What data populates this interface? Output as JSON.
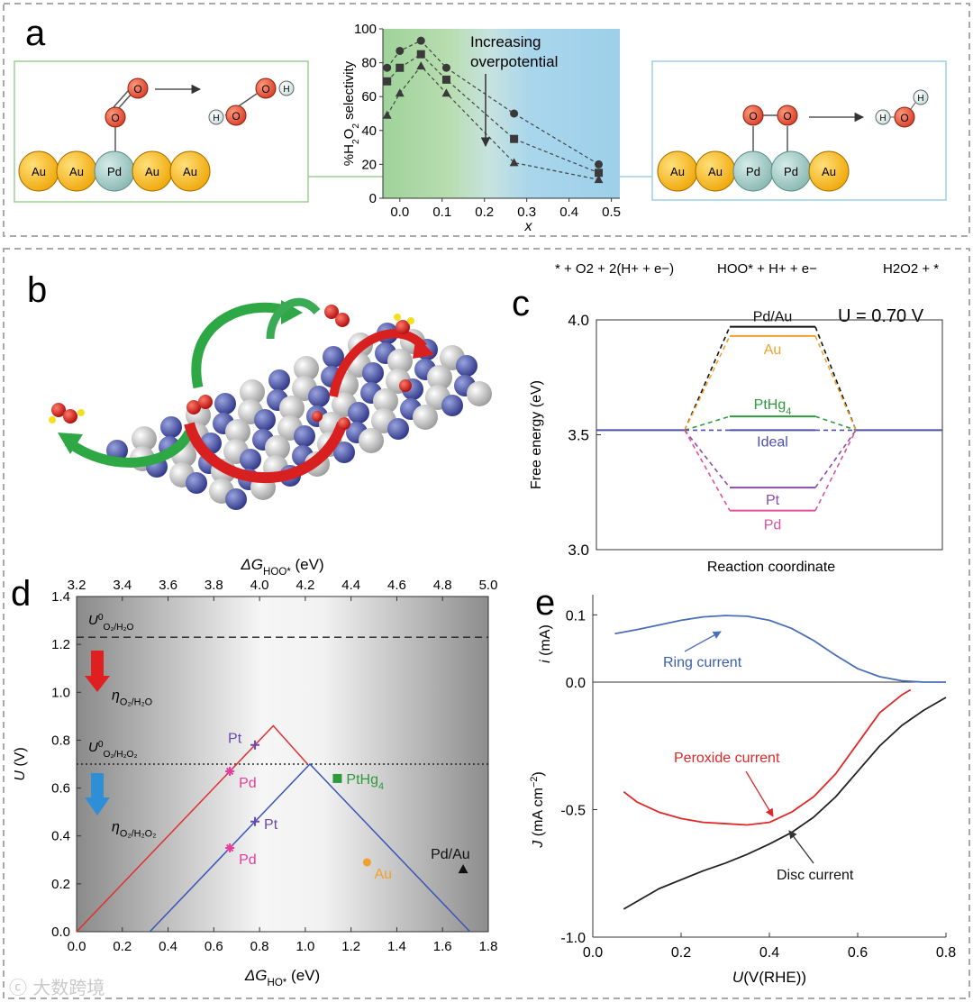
{
  "figure": {
    "panel_labels": [
      "a",
      "b",
      "c",
      "d",
      "e"
    ],
    "watermark": "大数跨境"
  },
  "panel_a": {
    "annotation": [
      "Increasing",
      "overpotential"
    ],
    "left_model": {
      "atoms": [
        "Au",
        "Au",
        "Pd",
        "Au",
        "Au"
      ],
      "adsorbate": [
        "O",
        "O"
      ],
      "product": [
        "H",
        "O",
        "O",
        "H"
      ]
    },
    "right_model": {
      "atoms": [
        "Au",
        "Au",
        "Pd",
        "Pd",
        "Au"
      ],
      "adsorbate": [
        "O",
        "O"
      ],
      "product": [
        "H",
        "O",
        "H"
      ]
    },
    "chart_data": {
      "type": "scatter",
      "title": "",
      "xlabel": "x",
      "ylabel": "%H2O2 selectivity",
      "xlim": [
        -0.04,
        0.52
      ],
      "ylim": [
        0,
        100
      ],
      "xticks": [
        "0.0",
        "0.1",
        "0.2",
        "0.3",
        "0.4",
        "0.5"
      ],
      "yticks": [
        "0",
        "20",
        "40",
        "60",
        "80",
        "100"
      ],
      "series": [
        {
          "name": "circles",
          "marker": "circle",
          "x": [
            -0.03,
            0.0,
            0.05,
            0.11,
            0.27,
            0.47
          ],
          "y": [
            77,
            87,
            93,
            77,
            50,
            20
          ]
        },
        {
          "name": "squares",
          "marker": "square",
          "x": [
            -0.03,
            0.0,
            0.05,
            0.11,
            0.27,
            0.47
          ],
          "y": [
            69,
            77,
            85,
            70,
            35,
            15
          ]
        },
        {
          "name": "triangles",
          "marker": "triangle",
          "x": [
            -0.03,
            0.0,
            0.05,
            0.11,
            0.27,
            0.47
          ],
          "y": [
            49,
            62,
            78,
            62,
            21,
            11
          ]
        }
      ]
    }
  },
  "panel_c": {
    "annotation": "U = 0.70 V",
    "header": [
      "* + O2 + 2(H+ + e−)",
      "HOO* + H+ + e−",
      "H2O2 + *"
    ],
    "chart_data": {
      "type": "line",
      "title": "",
      "xlabel": "Reaction coordinate",
      "ylabel": "Free energy (eV)",
      "ylim": [
        3.0,
        4.0
      ],
      "yticks": [
        "3.0",
        "3.5",
        "4.0"
      ],
      "baseline": 3.52,
      "series": [
        {
          "name": "Pd/Au",
          "level": 3.97,
          "color": "#111111"
        },
        {
          "name": "Au",
          "level": 3.93,
          "color": "#f0a030"
        },
        {
          "name": "PtHg4",
          "level": 3.58,
          "color": "#2e9a3e"
        },
        {
          "name": "Ideal",
          "level": 3.52,
          "color": "#4a4fb0"
        },
        {
          "name": "Pt",
          "level": 3.27,
          "color": "#8a4ca8"
        },
        {
          "name": "Pd",
          "level": 3.17,
          "color": "#e0529a"
        }
      ]
    }
  },
  "panel_d": {
    "chart_data": {
      "type": "scatter",
      "title": "",
      "xlabel": "ΔG_HO* (eV)",
      "x2label": "ΔG_HOO* (eV)",
      "ylabel": "U (V)",
      "xlim": [
        0,
        1.8
      ],
      "x2lim": [
        3.2,
        5.0
      ],
      "ylim": [
        0,
        1.4
      ],
      "xticks": [
        "0.0",
        "0.2",
        "0.4",
        "0.6",
        "0.8",
        "1.0",
        "1.2",
        "1.4",
        "1.6",
        "1.8"
      ],
      "x2ticks": [
        "3.2",
        "3.4",
        "3.6",
        "3.8",
        "4.0",
        "4.2",
        "4.4",
        "4.6",
        "4.8",
        "5.0"
      ],
      "yticks": [
        "0.0",
        "0.2",
        "0.4",
        "0.6",
        "0.8",
        "1.0",
        "1.2",
        "1.4"
      ],
      "reference_lines": [
        {
          "name": "U0 O2/H2O",
          "label": "U",
          "sup": "0",
          "sub": "O2/H2O",
          "value": 1.23,
          "style": "dashed"
        },
        {
          "name": "U0 O2/H2O2",
          "label": "U",
          "sup": "0",
          "sub": "O2/H2O2",
          "value": 0.7,
          "style": "dotted"
        }
      ],
      "overpotential_labels": [
        {
          "label": "η",
          "sub": "O2/H2O",
          "color": "#e02020"
        },
        {
          "label": "η",
          "sub": "O2/H2O2",
          "color": "#2e8fd6"
        }
      ],
      "volcano_lines": [
        {
          "name": "4e- volcano",
          "color": "#e03030",
          "points": [
            [
              0.0,
              0.0
            ],
            [
              0.86,
              0.86
            ],
            [
              1.01,
              0.7
            ]
          ]
        },
        {
          "name": "2e- volcano",
          "color": "#3a55b8",
          "points": [
            [
              0.32,
              0.0
            ],
            [
              1.02,
              0.7
            ],
            [
              1.72,
              0.0
            ]
          ]
        }
      ],
      "points": [
        {
          "name": "Pt",
          "x": 0.78,
          "y": 0.78,
          "marker": "plus",
          "color": "#6a4aa8"
        },
        {
          "name": "Pd",
          "x": 0.67,
          "y": 0.67,
          "marker": "asterisk",
          "color": "#e0409a"
        },
        {
          "name": "Pt",
          "x": 0.78,
          "y": 0.46,
          "marker": "plus",
          "color": "#6a4aa8"
        },
        {
          "name": "Pd",
          "x": 0.67,
          "y": 0.35,
          "marker": "asterisk",
          "color": "#e0409a"
        },
        {
          "name": "PtHg4",
          "x": 1.14,
          "y": 0.64,
          "marker": "square",
          "color": "#2e9a3e"
        },
        {
          "name": "Au",
          "x": 1.27,
          "y": 0.29,
          "marker": "circle",
          "color": "#f0a030"
        },
        {
          "name": "Pd/Au",
          "x": 1.69,
          "y": 0.26,
          "marker": "triangle",
          "color": "#111111"
        }
      ]
    }
  },
  "panel_e": {
    "chart_data": {
      "type": "line",
      "title": "",
      "xlabel": "U(V(RHE))",
      "ylabel_top": "i (mA)",
      "ylabel_bottom": "J (mA cm−2)",
      "xlim": [
        0.0,
        0.8
      ],
      "xticks": [
        "0.0",
        "0.2",
        "0.4",
        "0.6",
        "0.8"
      ],
      "ylim_top": [
        0.0,
        0.13
      ],
      "yticks_top": [
        "0.0",
        "0.1"
      ],
      "ylim_bottom": [
        -1.0,
        0.0
      ],
      "yticks_bottom": [
        "-1.0",
        "-0.5"
      ],
      "series": [
        {
          "name": "Ring current",
          "panel": "top",
          "color": "#4a6fb8",
          "x": [
            0.05,
            0.1,
            0.15,
            0.2,
            0.25,
            0.3,
            0.35,
            0.4,
            0.45,
            0.5,
            0.55,
            0.6,
            0.65,
            0.7,
            0.75,
            0.8
          ],
          "y": [
            0.072,
            0.078,
            0.085,
            0.092,
            0.097,
            0.099,
            0.098,
            0.092,
            0.08,
            0.062,
            0.04,
            0.02,
            0.008,
            0.002,
            0.0,
            0.0
          ]
        },
        {
          "name": "Peroxide current",
          "panel": "bottom",
          "color": "#e02828",
          "x": [
            0.07,
            0.1,
            0.15,
            0.2,
            0.25,
            0.3,
            0.35,
            0.4,
            0.45,
            0.5,
            0.55,
            0.6,
            0.65,
            0.7,
            0.72
          ],
          "y": [
            -0.43,
            -0.47,
            -0.51,
            -0.535,
            -0.55,
            -0.555,
            -0.56,
            -0.55,
            -0.51,
            -0.45,
            -0.36,
            -0.24,
            -0.12,
            -0.05,
            -0.03
          ]
        },
        {
          "name": "Disc current",
          "panel": "bottom",
          "color": "#222222",
          "x": [
            0.07,
            0.1,
            0.15,
            0.2,
            0.25,
            0.3,
            0.35,
            0.4,
            0.45,
            0.5,
            0.55,
            0.6,
            0.65,
            0.7,
            0.75,
            0.8
          ],
          "y": [
            -0.89,
            -0.86,
            -0.81,
            -0.775,
            -0.74,
            -0.71,
            -0.675,
            -0.635,
            -0.59,
            -0.53,
            -0.45,
            -0.35,
            -0.25,
            -0.17,
            -0.11,
            -0.06
          ]
        }
      ],
      "annotations": [
        "Ring current",
        "Peroxide current",
        "Disc current"
      ]
    }
  }
}
